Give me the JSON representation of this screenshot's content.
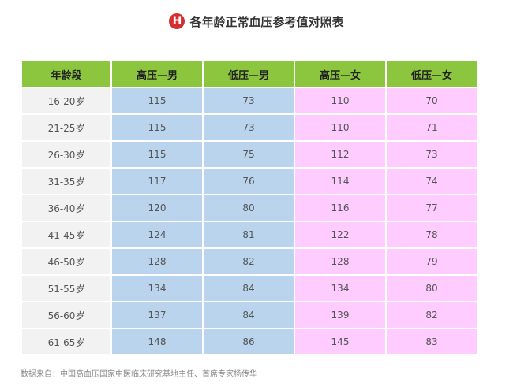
{
  "title": {
    "badge": "H",
    "text": "各年龄正常血压参考值对照表"
  },
  "table": {
    "headers": [
      "年龄段",
      "高压—男",
      "低压—男",
      "高压—女",
      "低压—女"
    ],
    "rows": [
      [
        "16-20岁",
        "115",
        "73",
        "110",
        "70"
      ],
      [
        "21-25岁",
        "115",
        "73",
        "110",
        "71"
      ],
      [
        "26-30岁",
        "115",
        "75",
        "112",
        "73"
      ],
      [
        "31-35岁",
        "117",
        "76",
        "114",
        "74"
      ],
      [
        "36-40岁",
        "120",
        "80",
        "116",
        "77"
      ],
      [
        "41-45岁",
        "124",
        "81",
        "122",
        "78"
      ],
      [
        "46-50岁",
        "128",
        "82",
        "128",
        "79"
      ],
      [
        "51-55岁",
        "134",
        "84",
        "134",
        "80"
      ],
      [
        "56-60岁",
        "137",
        "84",
        "139",
        "82"
      ],
      [
        "61-65岁",
        "148",
        "86",
        "145",
        "83"
      ]
    ]
  },
  "source": "数据来自：中国高血压国家中医临床研究基地主任、首席专家杨传华",
  "colors": {
    "header": "#8cc63e",
    "age_cell": "#f2f2f2",
    "male_cell": "#b9d4ec",
    "female_cell": "#ffccff",
    "badge": "#d62e2e"
  }
}
